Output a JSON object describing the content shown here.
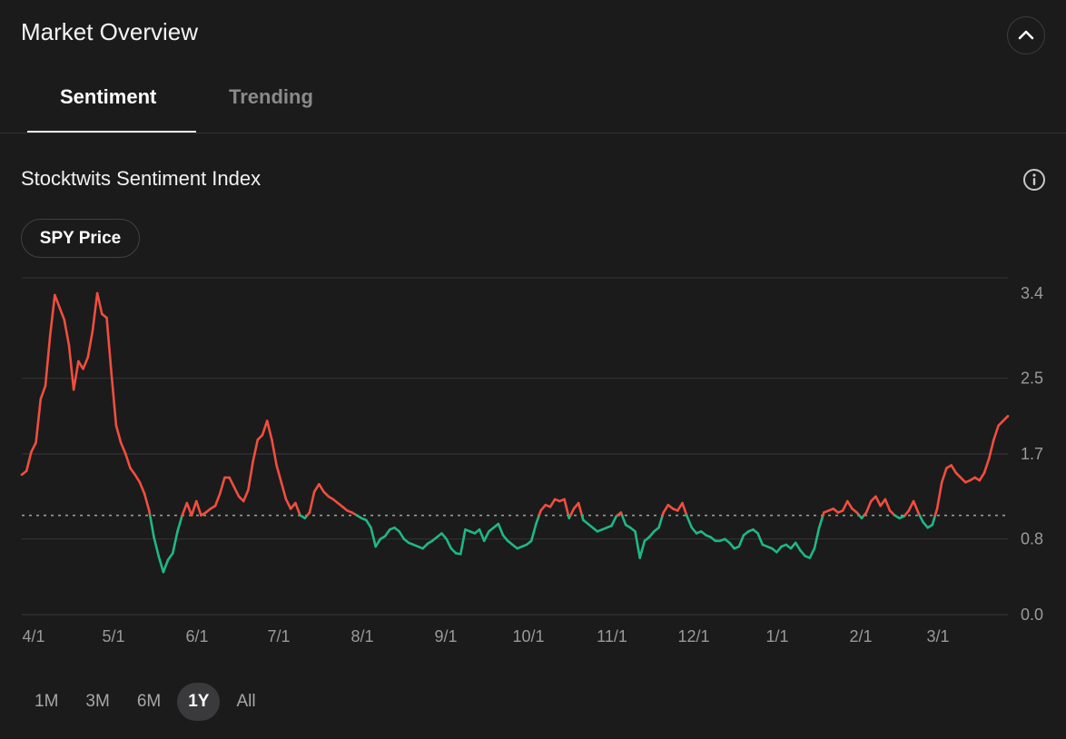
{
  "header": {
    "title": "Market Overview"
  },
  "tabs": [
    {
      "label": "Sentiment",
      "active": true
    },
    {
      "label": "Trending",
      "active": false
    }
  ],
  "section": {
    "title": "Stocktwits Sentiment Index",
    "pill_label": "SPY Price"
  },
  "icons": {
    "collapse": "chevron-up-icon",
    "info": "info-icon"
  },
  "colors": {
    "bullish": "#f04e3e",
    "bearish": "#1fb784",
    "baseline": "#9a9a9a",
    "grid": "#333335",
    "text_muted": "#9a9a9c"
  },
  "chart_data": {
    "type": "line",
    "title": "Stocktwits Sentiment Index",
    "xlabel": "",
    "ylabel": "",
    "y_ticks": [
      "3.4",
      "2.5",
      "1.7",
      "0.8",
      "0.0"
    ],
    "x_ticks": [
      "4/1",
      "5/1",
      "6/1",
      "7/1",
      "8/1",
      "9/1",
      "10/1",
      "11/1",
      "12/1",
      "1/1",
      "2/1",
      "3/1"
    ],
    "ylim": [
      0,
      3.4
    ],
    "baseline": 1.05,
    "grid": true,
    "color_rule": "red above baseline, green below baseline",
    "x_start": "3/30",
    "x_end": "3/26",
    "series": [
      {
        "values": [
          1.48,
          1.52,
          1.72,
          1.82,
          2.28,
          2.42,
          2.95,
          3.38,
          3.25,
          3.12,
          2.85,
          2.38,
          2.68,
          2.6,
          2.72,
          3.0,
          3.4,
          3.18,
          3.14,
          2.55,
          2.0,
          1.82,
          1.7,
          1.55,
          1.48,
          1.4,
          1.28,
          1.1,
          0.82,
          0.62,
          0.45,
          0.58,
          0.65,
          0.88,
          1.05,
          1.18,
          1.05,
          1.2,
          1.05,
          1.08,
          1.12,
          1.15,
          1.28,
          1.45,
          1.45,
          1.35,
          1.25,
          1.2,
          1.32,
          1.62,
          1.85,
          1.9,
          2.05,
          1.85,
          1.58,
          1.4,
          1.22,
          1.12,
          1.18,
          1.05,
          1.02,
          1.08,
          1.3,
          1.38,
          1.3,
          1.25,
          1.22,
          1.18,
          1.14,
          1.1,
          1.08,
          1.05,
          1.02,
          1.0,
          0.92,
          0.72,
          0.8,
          0.83,
          0.9,
          0.92,
          0.88,
          0.8,
          0.76,
          0.74,
          0.72,
          0.7,
          0.75,
          0.78,
          0.82,
          0.86,
          0.8,
          0.7,
          0.65,
          0.64,
          0.9,
          0.88,
          0.86,
          0.9,
          0.78,
          0.88,
          0.92,
          0.96,
          0.84,
          0.78,
          0.74,
          0.7,
          0.72,
          0.74,
          0.78,
          0.96,
          1.1,
          1.16,
          1.14,
          1.22,
          1.2,
          1.22,
          1.02,
          1.12,
          1.18,
          1.0,
          0.96,
          0.92,
          0.88,
          0.9,
          0.92,
          0.94,
          1.04,
          1.08,
          0.95,
          0.92,
          0.88,
          0.6,
          0.78,
          0.82,
          0.88,
          0.92,
          1.08,
          1.16,
          1.12,
          1.1,
          1.18,
          1.04,
          0.92,
          0.86,
          0.88,
          0.84,
          0.82,
          0.78,
          0.78,
          0.8,
          0.76,
          0.7,
          0.72,
          0.84,
          0.88,
          0.9,
          0.86,
          0.74,
          0.72,
          0.7,
          0.66,
          0.72,
          0.74,
          0.7,
          0.76,
          0.68,
          0.62,
          0.6,
          0.7,
          0.92,
          1.08,
          1.1,
          1.12,
          1.08,
          1.1,
          1.2,
          1.12,
          1.08,
          1.02,
          1.08,
          1.2,
          1.25,
          1.15,
          1.22,
          1.1,
          1.05,
          1.02,
          1.04,
          1.1,
          1.2,
          1.08,
          0.98,
          0.92,
          0.95,
          1.12,
          1.4,
          1.55,
          1.58,
          1.5,
          1.45,
          1.4,
          1.42,
          1.45,
          1.42,
          1.5,
          1.65,
          1.85,
          2.0,
          2.05,
          2.1
        ]
      }
    ]
  },
  "range_selector": [
    {
      "label": "1M",
      "active": false
    },
    {
      "label": "3M",
      "active": false
    },
    {
      "label": "6M",
      "active": false
    },
    {
      "label": "1Y",
      "active": true
    },
    {
      "label": "All",
      "active": false
    }
  ]
}
